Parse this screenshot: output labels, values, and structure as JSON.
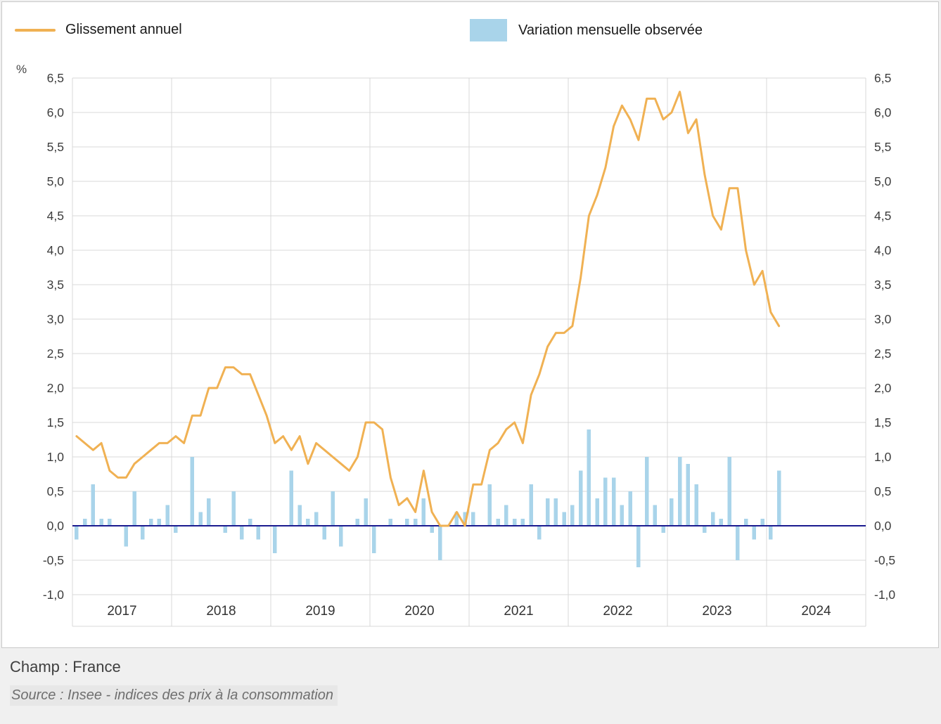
{
  "legend": {
    "line_label": "Glissement annuel",
    "bar_label": "Variation mensuelle observée"
  },
  "footer": {
    "champ": "Champ : France",
    "source": "Source : Insee - indices des prix à la consommation"
  },
  "colors": {
    "line": "#f0b153",
    "bar": "#a9d4ea",
    "zero_line": "#1b1b8f",
    "grid": "#d8d8d8",
    "axis_text": "#3d3d3d",
    "panel_border": "#c9c9c9"
  },
  "chart_data": {
    "type": "line+bar",
    "title": "",
    "xlabel": "",
    "ylabel": "%",
    "ylim": [
      -1.0,
      6.5
    ],
    "ytick_step": 0.5,
    "yticks": [
      6.5,
      6.0,
      5.5,
      5.0,
      4.5,
      4.0,
      3.5,
      3.0,
      2.5,
      2.0,
      1.5,
      1.0,
      0.5,
      0.0,
      -0.5,
      -1.0
    ],
    "ytick_labels": [
      "6,5",
      "6,0",
      "5,5",
      "5,0",
      "4,5",
      "4,0",
      "3,5",
      "3,0",
      "2,5",
      "2,0",
      "1,5",
      "1,0",
      "0,5",
      "0,0",
      "-0,5",
      "-1,0"
    ],
    "grid": true,
    "legend_position": "top",
    "years": [
      "2017",
      "2018",
      "2019",
      "2020",
      "2021",
      "2022",
      "2023",
      "2024"
    ],
    "frequency": "monthly",
    "x_start": "2017-01",
    "x_end": "2024-02",
    "series": [
      {
        "name": "Glissement annuel",
        "type": "line",
        "color": "#f0b153",
        "values": [
          1.3,
          1.2,
          1.1,
          1.2,
          0.8,
          0.7,
          0.7,
          0.9,
          1.0,
          1.1,
          1.2,
          1.2,
          1.3,
          1.2,
          1.6,
          1.6,
          2.0,
          2.0,
          2.3,
          2.3,
          2.2,
          2.2,
          1.9,
          1.6,
          1.2,
          1.3,
          1.1,
          1.3,
          0.9,
          1.2,
          1.1,
          1.0,
          0.9,
          0.8,
          1.0,
          1.5,
          1.5,
          1.4,
          0.7,
          0.3,
          0.4,
          0.2,
          0.8,
          0.2,
          0.0,
          0.0,
          0.2,
          0.0,
          0.6,
          0.6,
          1.1,
          1.2,
          1.4,
          1.5,
          1.2,
          1.9,
          2.2,
          2.6,
          2.8,
          2.8,
          2.9,
          3.6,
          4.5,
          4.8,
          5.2,
          5.8,
          6.1,
          5.9,
          5.6,
          6.2,
          6.2,
          5.9,
          6.0,
          6.3,
          5.7,
          5.9,
          5.1,
          4.5,
          4.3,
          4.9,
          4.9,
          4.0,
          3.5,
          3.7,
          3.1,
          2.9
        ]
      },
      {
        "name": "Variation mensuelle observée",
        "type": "bar",
        "color": "#a9d4ea",
        "values": [
          -0.2,
          0.1,
          0.6,
          0.1,
          0.1,
          0.0,
          -0.3,
          0.5,
          -0.2,
          0.1,
          0.1,
          0.3,
          -0.1,
          0.0,
          1.0,
          0.2,
          0.4,
          0.0,
          -0.1,
          0.5,
          -0.2,
          0.1,
          -0.2,
          0.0,
          -0.4,
          0.0,
          0.8,
          0.3,
          0.1,
          0.2,
          -0.2,
          0.5,
          -0.3,
          0.0,
          0.1,
          0.4,
          -0.4,
          0.0,
          0.1,
          0.0,
          0.1,
          0.1,
          0.4,
          -0.1,
          -0.5,
          0.0,
          0.2,
          0.2,
          0.2,
          0.0,
          0.6,
          0.1,
          0.3,
          0.1,
          0.1,
          0.6,
          -0.2,
          0.4,
          0.4,
          0.2,
          0.3,
          0.8,
          1.4,
          0.4,
          0.7,
          0.7,
          0.3,
          0.5,
          -0.6,
          1.0,
          0.3,
          -0.1,
          0.4,
          1.0,
          0.9,
          0.6,
          -0.1,
          0.2,
          0.1,
          1.0,
          -0.5,
          0.1,
          -0.2,
          0.1,
          -0.2,
          0.8
        ]
      }
    ]
  }
}
